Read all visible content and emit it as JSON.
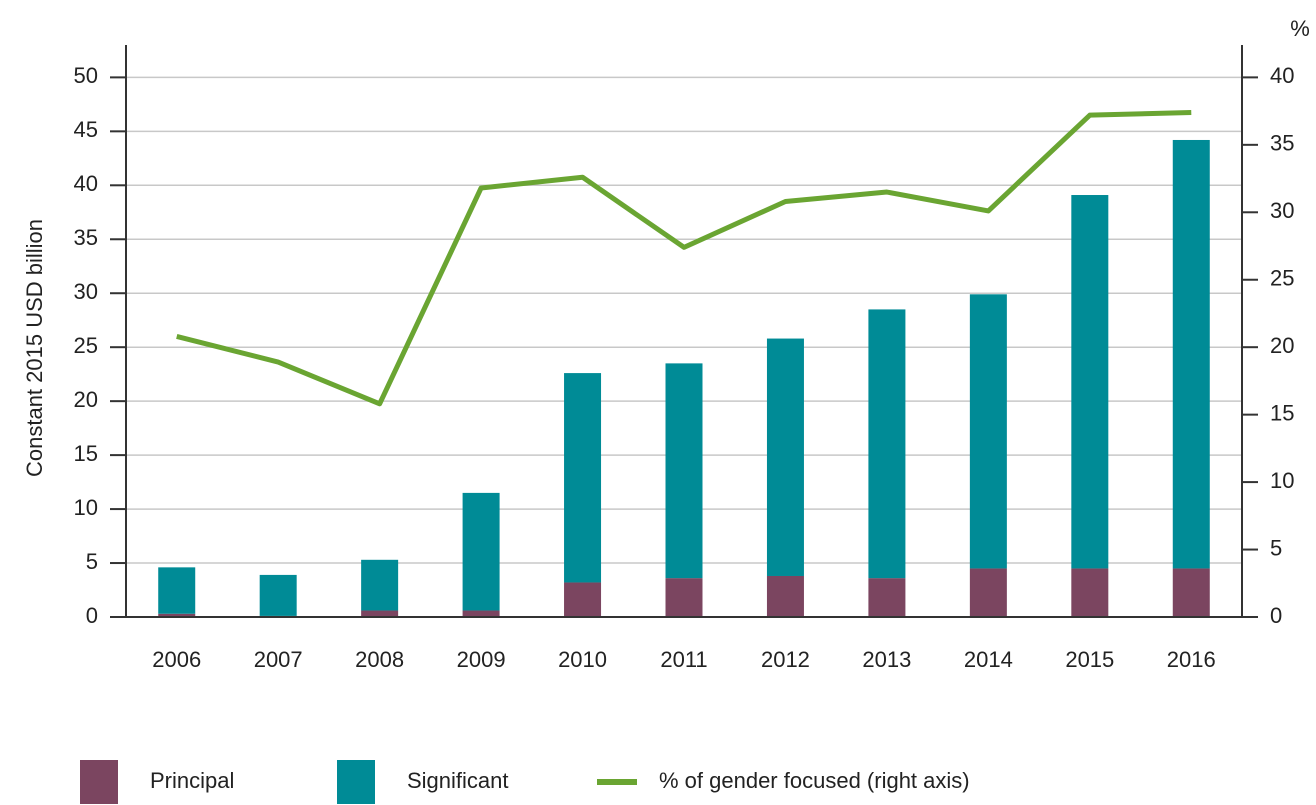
{
  "chart_data": {
    "type": "bar",
    "stacked": true,
    "y_label": "Constant 2015 USD billion",
    "y2_label": "%",
    "categories": [
      "2006",
      "2007",
      "2008",
      "2009",
      "2010",
      "2011",
      "2012",
      "2013",
      "2014",
      "2015",
      "2016"
    ],
    "series": [
      {
        "name": "Principal",
        "color": "#7b4560",
        "values": [
          0.3,
          0.1,
          0.6,
          0.6,
          3.2,
          3.6,
          3.8,
          3.6,
          4.5,
          4.5,
          4.5
        ]
      },
      {
        "name": "Significant",
        "color": "#008b96",
        "values": [
          4.3,
          3.8,
          4.7,
          10.9,
          19.4,
          19.9,
          22.0,
          24.9,
          25.4,
          34.6,
          39.7
        ]
      },
      {
        "name": "% of gender focused (right axis)",
        "color": "#6aa532",
        "type": "line",
        "axis": "y2",
        "values": [
          20.8,
          18.9,
          15.8,
          31.8,
          32.6,
          27.4,
          30.8,
          31.5,
          30.1,
          37.2,
          37.4
        ]
      }
    ],
    "ylim": [
      0,
      53
    ],
    "yticks": [
      0,
      5,
      10,
      15,
      20,
      25,
      30,
      35,
      40,
      45,
      50
    ],
    "y2lim": [
      0,
      42.4
    ],
    "y2ticks": [
      0,
      5,
      10,
      15,
      20,
      25,
      30,
      35,
      40
    ],
    "grid": true,
    "legend": "bottom"
  }
}
